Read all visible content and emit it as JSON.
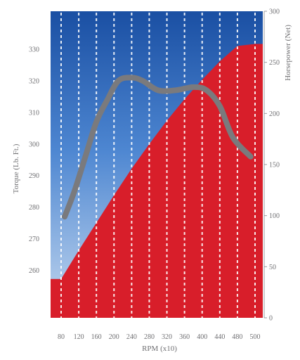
{
  "chart_data": {
    "type": "area",
    "title": "",
    "xlabel": "RPM (x10)",
    "ylabel_left": "Torque (Lb. Ft.)",
    "ylabel_right": "Horsepower (Net)",
    "x_ticks": [
      80,
      120,
      160,
      200,
      240,
      280,
      320,
      360,
      400,
      440,
      480,
      500
    ],
    "xlim": [
      80,
      500
    ],
    "left_ticks": [
      260,
      270,
      280,
      290,
      300,
      310,
      320,
      330
    ],
    "left_ylim": [
      245,
      342
    ],
    "right_ticks": [
      0,
      50,
      100,
      150,
      200,
      250,
      300
    ],
    "right_ylim": [
      0,
      300
    ],
    "grid": "vertical dashed white lines at each x tick",
    "series": [
      {
        "kind": "area",
        "axis": "right",
        "color": "#d81e2a",
        "x": [
          80,
          120,
          160,
          200,
          240,
          280,
          320,
          360,
          400,
          440,
          480,
          500
        ],
        "values": [
          38,
          66,
          93,
          120,
          146,
          170,
          193,
          214,
          233,
          251,
          266,
          268
        ]
      },
      {
        "kind": "line",
        "axis": "left",
        "color": "#7a7a7d",
        "x": [
          88,
          110,
          135,
          160,
          185,
          210,
          240,
          265,
          300,
          340,
          380,
          410,
          440,
          470,
          495
        ],
        "values": [
          277,
          285,
          296,
          307,
          314,
          320,
          321,
          320,
          317,
          317,
          318,
          317,
          312,
          302,
          296
        ]
      }
    ],
    "background_gradient": [
      "#1a4fa3",
      "#4d86d1",
      "#c5d9f0"
    ]
  }
}
